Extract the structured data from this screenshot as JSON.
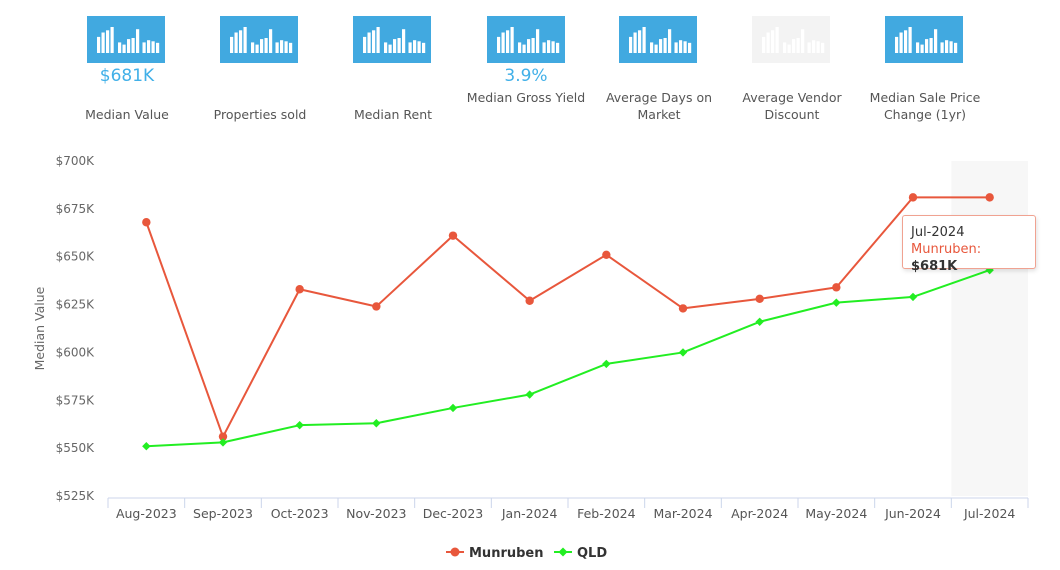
{
  "metrics": [
    {
      "label": "Median Value",
      "value": "$681K",
      "active": true
    },
    {
      "label": "Properties sold",
      "value": "",
      "active": true
    },
    {
      "label": "Median Rent",
      "value": "",
      "active": true
    },
    {
      "label": "Median Gross Yield",
      "value": "3.9%",
      "active": true
    },
    {
      "label": "Average Days on Market",
      "value": "",
      "active": true
    },
    {
      "label": "Average Vendor Discount",
      "value": "",
      "active": false
    },
    {
      "label": "Median Sale Price Change (1yr)",
      "value": "",
      "active": true
    }
  ],
  "tooltip": {
    "date": "Jul-2024",
    "series": "Munruben:",
    "value": "$681K"
  },
  "colors": {
    "tile": "#41a9e0",
    "tile_inactive": "#f3f3f3",
    "munruben": "#e8573c",
    "qld": "#22ee22"
  },
  "chart_data": {
    "type": "line",
    "ylabel": "Median Value",
    "xlabel": "",
    "ylim": [
      525000,
      700000
    ],
    "yticks": [
      525000,
      550000,
      575000,
      600000,
      625000,
      650000,
      675000,
      700000
    ],
    "ytick_labels": [
      "$525K",
      "$550K",
      "$575K",
      "$600K",
      "$625K",
      "$650K",
      "$675K",
      "$700K"
    ],
    "categories": [
      "Aug-2023",
      "Sep-2023",
      "Oct-2023",
      "Nov-2023",
      "Dec-2023",
      "Jan-2024",
      "Feb-2024",
      "Mar-2024",
      "Apr-2024",
      "May-2024",
      "Jun-2024",
      "Jul-2024"
    ],
    "series": [
      {
        "name": "Munruben",
        "color": "#e8573c",
        "marker": "circle",
        "values": [
          668000,
          556000,
          633000,
          624000,
          661000,
          627000,
          651000,
          623000,
          628000,
          634000,
          681000,
          681000
        ]
      },
      {
        "name": "QLD",
        "color": "#22ee22",
        "marker": "diamond",
        "values": [
          551000,
          553000,
          562000,
          563000,
          571000,
          578000,
          594000,
          600000,
          616000,
          626000,
          629000,
          643000
        ]
      }
    ],
    "legend": "bottom-center",
    "grid": false
  }
}
